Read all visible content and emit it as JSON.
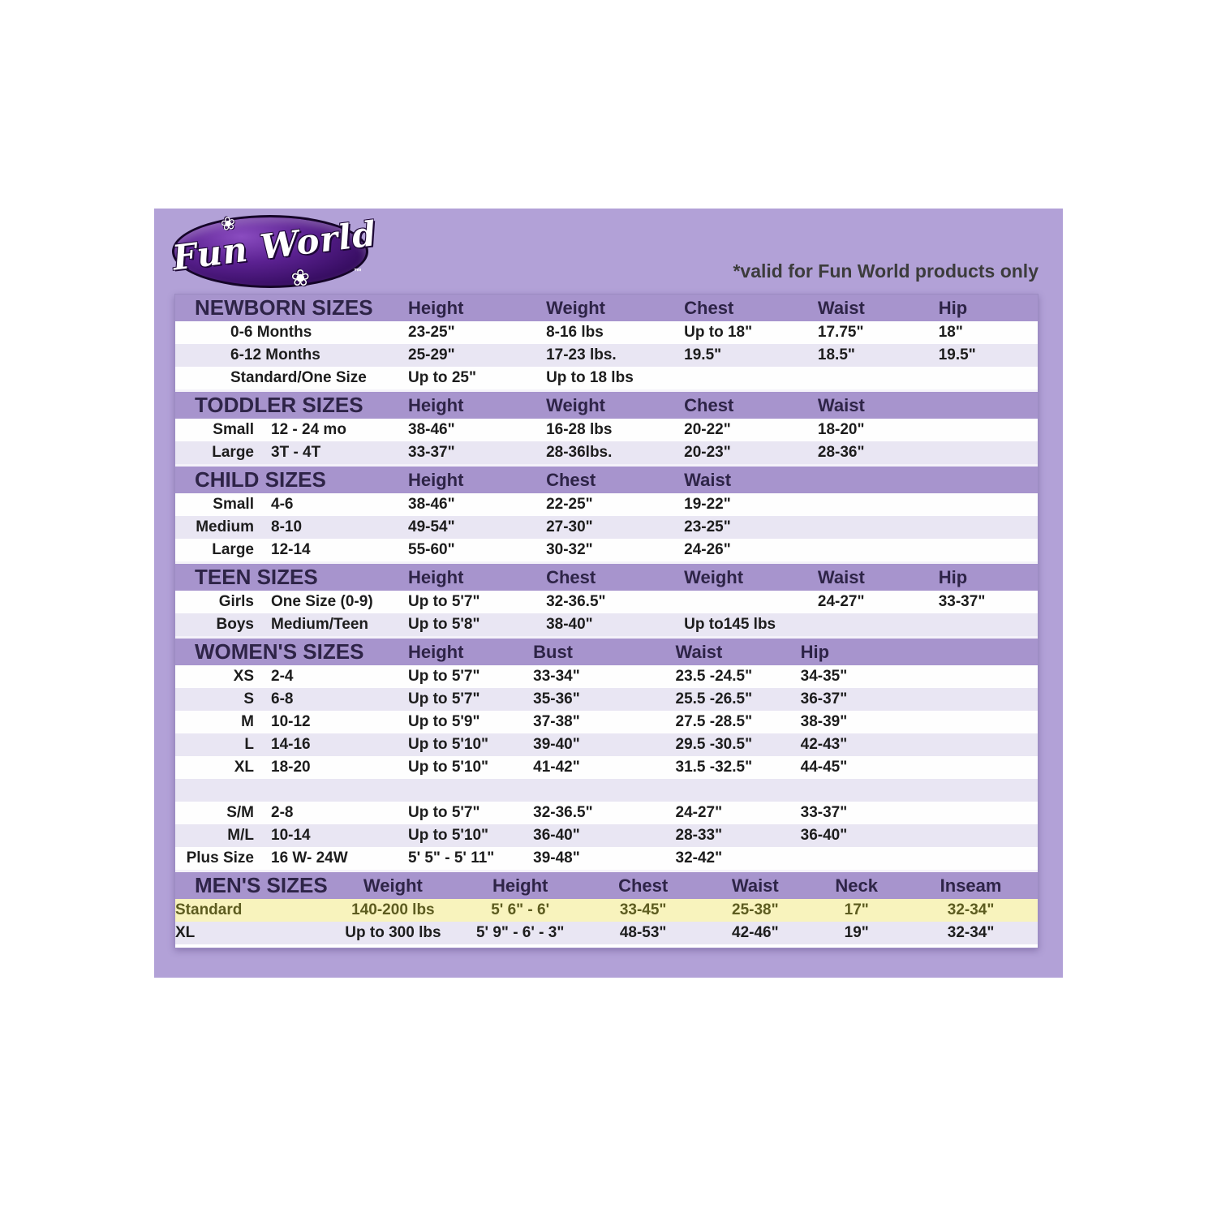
{
  "logo": {
    "text": "Fun World",
    "flower": "❀",
    "trademark": "™"
  },
  "note": "*valid for Fun World products only",
  "colors": {
    "panel_background": "#b2a1d7",
    "section_header_band": "#a794cd",
    "header_text": "#2e2447",
    "stripe_lavender": "#e9e6f3",
    "row_white": "#fefefe",
    "highlight_row_yellow": "#f8f3bd",
    "highlight_text_olive": "#5d5c20",
    "logo_purple": "#4a1677",
    "note_text": "#3c3c3c"
  },
  "sections": [
    {
      "id": "newborn",
      "title": "NEWBORN SIZES",
      "layout": "std",
      "columns": [
        "Height",
        "Weight",
        "Chest",
        "Waist",
        "Hip"
      ],
      "rows": [
        {
          "label_a": "",
          "label_b": "0-6 Months",
          "cells": [
            "23-25\"",
            "8-16 lbs",
            "Up to 18\"",
            "17.75\"",
            "18\""
          ]
        },
        {
          "label_a": "",
          "label_b": "6-12 Months",
          "cells": [
            "25-29\"",
            "17-23 lbs.",
            "19.5\"",
            "18.5\"",
            "19.5\""
          ]
        },
        {
          "label_a": "",
          "label_b": "Standard/One Size",
          "cells": [
            "Up to 25\"",
            "Up to 18 lbs",
            "",
            "",
            ""
          ]
        }
      ]
    },
    {
      "id": "toddler",
      "title": "TODDLER SIZES",
      "layout": "std",
      "columns": [
        "Height",
        "Weight",
        "Chest",
        "Waist",
        ""
      ],
      "rows": [
        {
          "label_a": "Small",
          "label_b": "12 - 24 mo",
          "cells": [
            "38-46\"",
            "16-28 lbs",
            "20-22\"",
            "18-20\"",
            ""
          ]
        },
        {
          "label_a": "Large",
          "label_b": "3T - 4T",
          "cells": [
            "33-37\"",
            "28-36lbs.",
            "20-23\"",
            "28-36\"",
            ""
          ]
        }
      ]
    },
    {
      "id": "child",
      "title": "CHILD SIZES",
      "layout": "std",
      "columns": [
        "Height",
        "Chest",
        "Waist",
        "",
        ""
      ],
      "rows": [
        {
          "label_a": "Small",
          "label_b": "4-6",
          "cells": [
            "38-46\"",
            "22-25\"",
            "19-22\"",
            "",
            ""
          ]
        },
        {
          "label_a": "Medium",
          "label_b": "8-10",
          "cells": [
            "49-54\"",
            "27-30\"",
            "23-25\"",
            "",
            ""
          ]
        },
        {
          "label_a": "Large",
          "label_b": "12-14",
          "cells": [
            "55-60\"",
            "30-32\"",
            "24-26\"",
            "",
            ""
          ]
        }
      ]
    },
    {
      "id": "teen",
      "title": "TEEN SIZES",
      "layout": "std",
      "columns": [
        "Height",
        "Chest",
        "Weight",
        "Waist",
        "Hip"
      ],
      "rows": [
        {
          "label_a": "Girls",
          "label_b": "One Size (0-9)",
          "cells": [
            "Up to 5'7\"",
            "32-36.5\"",
            "",
            "24-27\"",
            "33-37\""
          ]
        },
        {
          "label_a": "Boys",
          "label_b": "Medium/Teen",
          "cells": [
            "Up to 5'8\"",
            "38-40\"",
            "Up to145 lbs",
            "",
            ""
          ]
        }
      ]
    },
    {
      "id": "women",
      "title": "WOMEN'S SIZES",
      "layout": "women",
      "columns": [
        "Height",
        "Bust",
        "Waist",
        "Hip"
      ],
      "rows": [
        {
          "label_a": "XS",
          "label_b": "2-4",
          "cells": [
            "Up to 5'7\"",
            "33-34\"",
            "23.5 -24.5\"",
            "34-35\""
          ]
        },
        {
          "label_a": "S",
          "label_b": "6-8",
          "cells": [
            "Up to 5'7\"",
            "35-36\"",
            "25.5 -26.5\"",
            "36-37\""
          ]
        },
        {
          "label_a": "M",
          "label_b": "10-12",
          "cells": [
            "Up to 5'9\"",
            "37-38\"",
            "27.5 -28.5\"",
            "38-39\""
          ]
        },
        {
          "label_a": "L",
          "label_b": "14-16",
          "cells": [
            "Up to 5'10\"",
            "39-40\"",
            "29.5 -30.5\"",
            "42-43\""
          ]
        },
        {
          "label_a": "XL",
          "label_b": "18-20",
          "cells": [
            "Up to 5'10\"",
            "41-42\"",
            "31.5 -32.5\"",
            "44-45\""
          ]
        },
        {
          "spacer": true
        },
        {
          "label_a": "S/M",
          "label_b": "2-8",
          "cells": [
            "Up to 5'7\"",
            "32-36.5\"",
            "24-27\"",
            "33-37\""
          ]
        },
        {
          "label_a": "M/L",
          "label_b": "10-14",
          "cells": [
            "Up to 5'10\"",
            "36-40\"",
            "28-33\"",
            "36-40\""
          ]
        },
        {
          "label_a": "Plus Size",
          "label_b": "16 W- 24W",
          "cells": [
            "5' 5\" - 5' 11\"",
            "39-48\"",
            "32-42\"",
            ""
          ]
        }
      ]
    },
    {
      "id": "men",
      "title": "MEN'S SIZES",
      "layout": "men",
      "columns": [
        "Weight",
        "Height",
        "Chest",
        "Waist",
        "Neck",
        "Inseam"
      ],
      "rows": [
        {
          "label_a": "",
          "label_b": "Standard",
          "highlight": true,
          "cells": [
            "140-200 lbs",
            "5' 6\" - 6'",
            "33-45\"",
            "25-38\"",
            "17\"",
            "32-34\""
          ]
        },
        {
          "label_a": "",
          "label_b": "XL",
          "cells": [
            "Up to 300 lbs",
            "5' 9\" - 6' - 3\"",
            "48-53\"",
            "42-46\"",
            "19\"",
            "32-34\""
          ]
        }
      ]
    }
  ]
}
